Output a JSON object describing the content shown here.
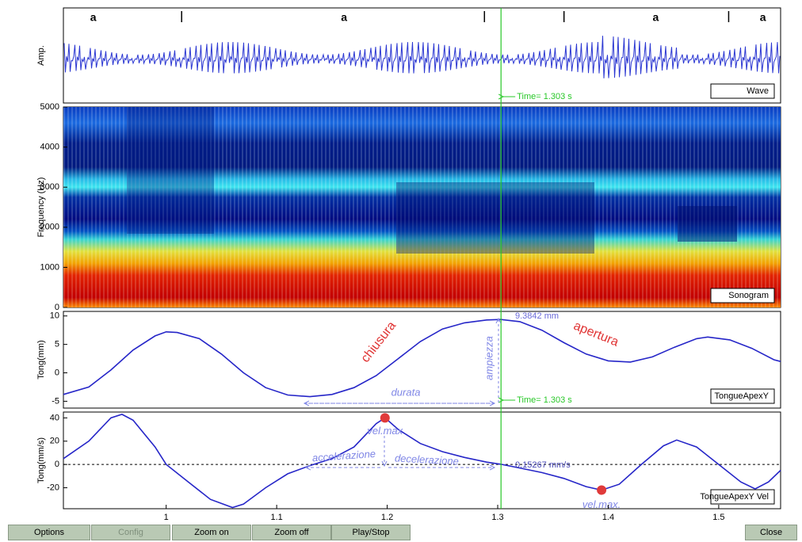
{
  "xlim": [
    0.907,
    1.556
  ],
  "xticks": [
    1,
    1.1,
    1.2,
    1.3,
    1.4,
    1.5
  ],
  "cursor": {
    "time": 1.303,
    "label": "Time= 1.303 s"
  },
  "wave": {
    "ylabel": "Amp.",
    "legend": "Wave",
    "phones": [
      {
        "label": "a",
        "time": 0.934
      },
      {
        "label": "a",
        "time": 1.161
      },
      {
        "label": "a",
        "time": 1.443
      },
      {
        "label": "a",
        "time": 1.54
      }
    ],
    "boundaries": [
      1.014,
      1.288,
      1.36,
      1.509
    ]
  },
  "sonogram": {
    "ylabel": "Frequency (Hz)",
    "legend": "Sonogram",
    "ylim": [
      0,
      5000
    ],
    "yticks": [
      0,
      1000,
      2000,
      3000,
      4000,
      5000
    ]
  },
  "position": {
    "type": "line",
    "ylabel": "Tong(mm)",
    "legend": "TongueApexY",
    "color": "#2626c8",
    "ylim": [
      -6.2,
      10.8
    ],
    "yticks": [
      -5,
      0,
      5,
      10
    ],
    "x": [
      0.907,
      0.93,
      0.95,
      0.97,
      0.99,
      1.0,
      1.01,
      1.03,
      1.05,
      1.07,
      1.09,
      1.11,
      1.13,
      1.15,
      1.17,
      1.19,
      1.21,
      1.23,
      1.25,
      1.27,
      1.29,
      1.303,
      1.32,
      1.34,
      1.36,
      1.38,
      1.4,
      1.42,
      1.44,
      1.46,
      1.48,
      1.49,
      1.51,
      1.53,
      1.55,
      1.556
    ],
    "values": [
      -3.8,
      -2.5,
      0.5,
      4.0,
      6.5,
      7.2,
      7.1,
      6.0,
      3.3,
      0.0,
      -2.6,
      -3.9,
      -4.2,
      -3.8,
      -2.6,
      -0.5,
      2.5,
      5.5,
      7.7,
      8.8,
      9.3,
      9.38,
      9.0,
      7.5,
      5.3,
      3.3,
      2.1,
      1.9,
      2.8,
      4.5,
      6.0,
      6.3,
      5.8,
      4.3,
      2.3,
      2.0
    ],
    "annotations": {
      "closure": "chiusura",
      "opening": "apertura",
      "amplitude": "ampiezza",
      "duration": "durata",
      "peak_value": "9.3842 mm"
    }
  },
  "velocity": {
    "type": "line",
    "ylabel": "Tong(mm/s)",
    "legend": "TongueApexY Vel",
    "color": "#2626c8",
    "ylim": [
      -38,
      45
    ],
    "yticks": [
      -20,
      0,
      20,
      40
    ],
    "zero_line": true,
    "x": [
      0.907,
      0.93,
      0.95,
      0.96,
      0.97,
      0.99,
      1.0,
      1.02,
      1.04,
      1.06,
      1.07,
      1.09,
      1.11,
      1.13,
      1.15,
      1.17,
      1.19,
      1.198,
      1.21,
      1.23,
      1.25,
      1.27,
      1.29,
      1.303,
      1.32,
      1.34,
      1.36,
      1.38,
      1.394,
      1.41,
      1.43,
      1.45,
      1.462,
      1.48,
      1.5,
      1.52,
      1.533,
      1.545,
      1.556
    ],
    "values": [
      5,
      20,
      40,
      43,
      38,
      15,
      0,
      -15,
      -30,
      -37,
      -34,
      -20,
      -8,
      -1,
      5,
      15,
      35,
      40,
      30,
      18,
      11,
      6,
      2,
      0.15,
      -3,
      -7,
      -12,
      -19,
      -22,
      -17,
      0,
      16,
      21,
      15,
      0,
      -15,
      -21,
      -15,
      -5
    ],
    "max_points": [
      {
        "x": 1.198,
        "y": 40,
        "label": "vel.max"
      },
      {
        "x": 1.394,
        "y": -22,
        "label": "vel.max."
      }
    ],
    "annotations": {
      "acceleration": "accelerazione",
      "deceleration": "decelerazione",
      "cursor_value": "0.15267 mm/s"
    }
  },
  "buttons": [
    {
      "label": "Options",
      "enabled": true
    },
    {
      "label": "Config",
      "enabled": false
    },
    {
      "label": "Zoom on",
      "enabled": true
    },
    {
      "label": "Zoom off",
      "enabled": true
    },
    {
      "label": "Play/Stop",
      "enabled": true
    },
    {
      "label": "Close",
      "enabled": true
    }
  ]
}
